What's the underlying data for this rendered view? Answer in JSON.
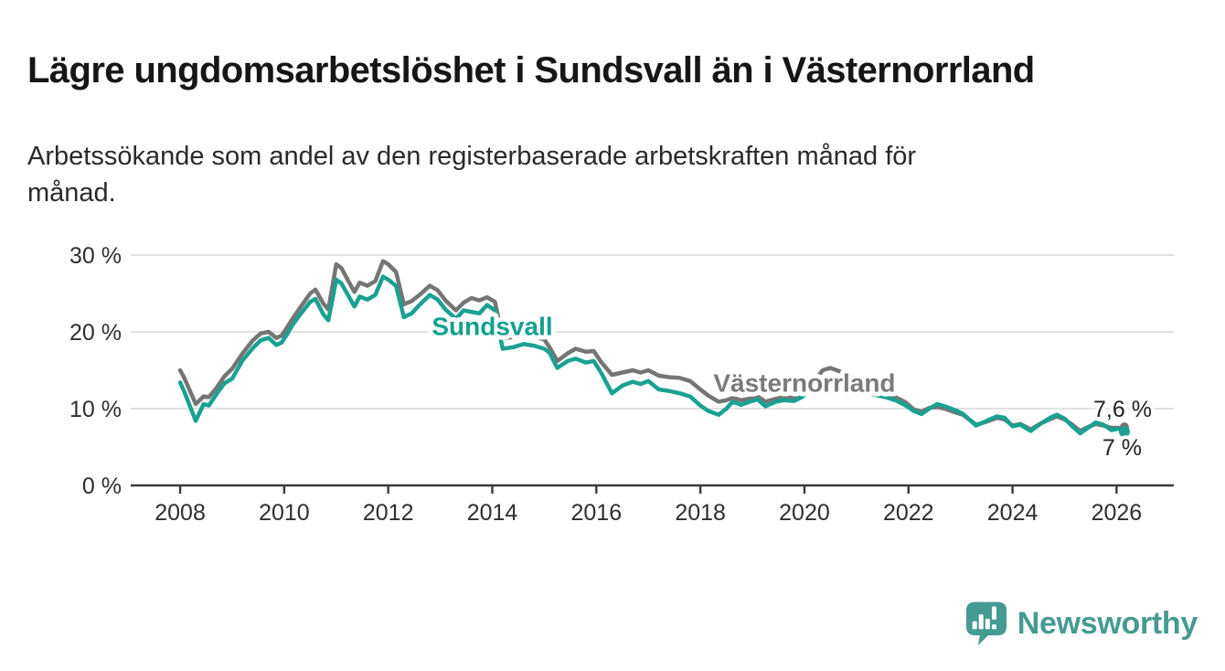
{
  "header": {
    "title": "Lägre ungdomsarbetslöshet i Sundsvall än i Västernorrland",
    "subtitle": "Arbetssökande som andel av den registerbaserade arbetskraften månad för månad."
  },
  "chart_data": {
    "type": "line",
    "title": "Lägre ungdomsarbetslöshet i Sundsvall än i Västernorrland",
    "subtitle": "Arbetssökande som andel av den registerbaserade arbetskraften månad för månad.",
    "grid": "horizontal",
    "legend_position": "inline-labels",
    "xlim": [
      2007.05,
      2027.1
    ],
    "ylim": [
      0,
      30
    ],
    "x_ticks": [
      2008,
      2010,
      2012,
      2014,
      2016,
      2018,
      2020,
      2022,
      2024,
      2026
    ],
    "x_tick_labels": [
      "2008",
      "2010",
      "2012",
      "2014",
      "2016",
      "2018",
      "2020",
      "2022",
      "2024",
      "2026"
    ],
    "y_ticks": [
      0,
      10,
      20,
      30
    ],
    "y_tick_labels": [
      "0 %",
      "10 %",
      "20 %",
      "30 %"
    ],
    "colors": {
      "grid": "#d9d9d9",
      "axis": "#3a3a3a",
      "tick_text": "#2f2f2f",
      "halo": "#ffffff"
    },
    "series": [
      {
        "name": "Västernorrland",
        "color": "#757575",
        "label_color": "#7b7b7b",
        "end_label": "7,6 %",
        "end_value": 7.6,
        "end_dot": true,
        "dot_r": 5,
        "label_pos": [
          2020.0,
          13.4
        ],
        "end_label_offset": [
          30,
          -11
        ],
        "points": [
          [
            2008.0,
            15.0
          ],
          [
            2008.08,
            14.0
          ],
          [
            2008.3,
            10.6
          ],
          [
            2008.45,
            11.6
          ],
          [
            2008.55,
            11.5
          ],
          [
            2008.7,
            12.7
          ],
          [
            2008.85,
            14.2
          ],
          [
            2009.0,
            15.2
          ],
          [
            2009.2,
            17.2
          ],
          [
            2009.4,
            18.9
          ],
          [
            2009.55,
            19.8
          ],
          [
            2009.7,
            20.0
          ],
          [
            2009.85,
            19.2
          ],
          [
            2009.95,
            19.5
          ],
          [
            2010.05,
            20.5
          ],
          [
            2010.15,
            21.6
          ],
          [
            2010.3,
            23.1
          ],
          [
            2010.5,
            25.0
          ],
          [
            2010.6,
            25.5
          ],
          [
            2010.75,
            23.7
          ],
          [
            2010.85,
            22.9
          ],
          [
            2011.0,
            28.8
          ],
          [
            2011.1,
            28.3
          ],
          [
            2011.25,
            26.4
          ],
          [
            2011.35,
            25.2
          ],
          [
            2011.45,
            26.4
          ],
          [
            2011.6,
            26.0
          ],
          [
            2011.75,
            26.6
          ],
          [
            2011.9,
            29.2
          ],
          [
            2012.0,
            28.8
          ],
          [
            2012.15,
            27.8
          ],
          [
            2012.3,
            23.6
          ],
          [
            2012.45,
            24.0
          ],
          [
            2012.6,
            24.8
          ],
          [
            2012.8,
            26.0
          ],
          [
            2012.95,
            25.4
          ],
          [
            2013.1,
            24.1
          ],
          [
            2013.3,
            22.8
          ],
          [
            2013.45,
            23.8
          ],
          [
            2013.6,
            24.4
          ],
          [
            2013.75,
            24.1
          ],
          [
            2013.9,
            24.5
          ],
          [
            2014.05,
            23.9
          ],
          [
            2014.2,
            19.2
          ],
          [
            2014.4,
            19.3
          ],
          [
            2014.6,
            19.6
          ],
          [
            2014.8,
            19.4
          ],
          [
            2015.0,
            19.0
          ],
          [
            2015.1,
            18.0
          ],
          [
            2015.25,
            16.2
          ],
          [
            2015.45,
            17.2
          ],
          [
            2015.6,
            17.8
          ],
          [
            2015.8,
            17.4
          ],
          [
            2015.95,
            17.5
          ],
          [
            2016.1,
            16.0
          ],
          [
            2016.3,
            14.4
          ],
          [
            2016.5,
            14.7
          ],
          [
            2016.7,
            15.0
          ],
          [
            2016.85,
            14.7
          ],
          [
            2017.0,
            15.0
          ],
          [
            2017.2,
            14.3
          ],
          [
            2017.4,
            14.1
          ],
          [
            2017.6,
            14.0
          ],
          [
            2017.8,
            13.6
          ],
          [
            2018.0,
            12.5
          ],
          [
            2018.15,
            11.7
          ],
          [
            2018.35,
            10.9
          ],
          [
            2018.5,
            11.1
          ],
          [
            2018.62,
            11.4
          ],
          [
            2018.78,
            11.1
          ],
          [
            2018.95,
            11.3
          ],
          [
            2019.1,
            11.6
          ],
          [
            2019.25,
            10.9
          ],
          [
            2019.45,
            11.3
          ],
          [
            2019.6,
            11.5
          ],
          [
            2019.8,
            11.4
          ],
          [
            2019.95,
            11.9
          ],
          [
            2020.15,
            13.2
          ],
          [
            2020.35,
            15.0
          ],
          [
            2020.5,
            15.3
          ],
          [
            2020.7,
            14.8
          ],
          [
            2020.9,
            14.2
          ],
          [
            2021.1,
            13.6
          ],
          [
            2021.3,
            13.0
          ],
          [
            2021.55,
            12.2
          ],
          [
            2021.75,
            11.5
          ],
          [
            2021.95,
            10.8
          ],
          [
            2022.1,
            9.9
          ],
          [
            2022.25,
            9.6
          ],
          [
            2022.4,
            10.1
          ],
          [
            2022.55,
            10.2
          ],
          [
            2022.7,
            10.0
          ],
          [
            2022.9,
            9.5
          ],
          [
            2023.05,
            9.2
          ],
          [
            2023.3,
            7.9
          ],
          [
            2023.5,
            8.3
          ],
          [
            2023.7,
            8.8
          ],
          [
            2023.85,
            8.6
          ],
          [
            2024.0,
            7.8
          ],
          [
            2024.15,
            8.0
          ],
          [
            2024.35,
            7.3
          ],
          [
            2024.55,
            8.1
          ],
          [
            2024.75,
            8.7
          ],
          [
            2024.85,
            9.0
          ],
          [
            2025.0,
            8.6
          ],
          [
            2025.15,
            7.9
          ],
          [
            2025.3,
            7.1
          ],
          [
            2025.45,
            7.6
          ],
          [
            2025.6,
            8.0
          ],
          [
            2025.75,
            7.8
          ],
          [
            2025.9,
            7.5
          ],
          [
            2026.05,
            7.5
          ],
          [
            2026.15,
            7.6
          ]
        ]
      },
      {
        "name": "Sundsvall",
        "color": "#1aa191",
        "label_color": "#14a08e",
        "end_label": "7 %",
        "end_value": 7.0,
        "end_dot": true,
        "dot_r": 6,
        "label_pos": [
          2014.0,
          20.8
        ],
        "end_label_offset": [
          19,
          26
        ],
        "points": [
          [
            2008.0,
            13.4
          ],
          [
            2008.08,
            12.2
          ],
          [
            2008.3,
            8.4
          ],
          [
            2008.45,
            10.6
          ],
          [
            2008.55,
            10.4
          ],
          [
            2008.7,
            11.9
          ],
          [
            2008.85,
            13.3
          ],
          [
            2009.0,
            13.9
          ],
          [
            2009.2,
            16.3
          ],
          [
            2009.4,
            17.9
          ],
          [
            2009.55,
            18.9
          ],
          [
            2009.7,
            19.2
          ],
          [
            2009.85,
            18.3
          ],
          [
            2009.95,
            18.6
          ],
          [
            2010.05,
            19.6
          ],
          [
            2010.15,
            20.8
          ],
          [
            2010.3,
            22.2
          ],
          [
            2010.5,
            23.9
          ],
          [
            2010.6,
            24.3
          ],
          [
            2010.75,
            22.3
          ],
          [
            2010.85,
            21.5
          ],
          [
            2011.0,
            26.8
          ],
          [
            2011.1,
            26.3
          ],
          [
            2011.25,
            24.5
          ],
          [
            2011.35,
            23.3
          ],
          [
            2011.45,
            24.6
          ],
          [
            2011.6,
            24.2
          ],
          [
            2011.75,
            24.8
          ],
          [
            2011.9,
            27.2
          ],
          [
            2012.0,
            26.8
          ],
          [
            2012.15,
            26.0
          ],
          [
            2012.3,
            21.9
          ],
          [
            2012.45,
            22.4
          ],
          [
            2012.6,
            23.5
          ],
          [
            2012.8,
            24.8
          ],
          [
            2012.95,
            24.2
          ],
          [
            2013.1,
            22.9
          ],
          [
            2013.3,
            21.7
          ],
          [
            2013.45,
            22.8
          ],
          [
            2013.6,
            22.6
          ],
          [
            2013.75,
            22.4
          ],
          [
            2013.9,
            23.5
          ],
          [
            2014.05,
            22.8
          ],
          [
            2014.2,
            17.8
          ],
          [
            2014.4,
            18.0
          ],
          [
            2014.6,
            18.4
          ],
          [
            2014.8,
            18.2
          ],
          [
            2015.0,
            17.8
          ],
          [
            2015.1,
            17.3
          ],
          [
            2015.25,
            15.3
          ],
          [
            2015.45,
            16.2
          ],
          [
            2015.6,
            16.5
          ],
          [
            2015.8,
            16.0
          ],
          [
            2015.95,
            16.2
          ],
          [
            2016.1,
            14.6
          ],
          [
            2016.3,
            12.0
          ],
          [
            2016.5,
            13.0
          ],
          [
            2016.7,
            13.5
          ],
          [
            2016.85,
            13.2
          ],
          [
            2017.0,
            13.6
          ],
          [
            2017.2,
            12.5
          ],
          [
            2017.4,
            12.3
          ],
          [
            2017.6,
            12.0
          ],
          [
            2017.8,
            11.6
          ],
          [
            2018.0,
            10.4
          ],
          [
            2018.15,
            9.7
          ],
          [
            2018.35,
            9.2
          ],
          [
            2018.5,
            10.0
          ],
          [
            2018.62,
            10.9
          ],
          [
            2018.78,
            10.5
          ],
          [
            2018.95,
            10.9
          ],
          [
            2019.1,
            11.2
          ],
          [
            2019.25,
            10.3
          ],
          [
            2019.45,
            10.9
          ],
          [
            2019.6,
            11.1
          ],
          [
            2019.8,
            11.0
          ],
          [
            2019.95,
            11.5
          ],
          [
            2020.15,
            12.5
          ],
          [
            2020.35,
            13.5
          ],
          [
            2020.5,
            13.8
          ],
          [
            2020.7,
            13.3
          ],
          [
            2020.9,
            12.8
          ],
          [
            2021.1,
            12.3
          ],
          [
            2021.3,
            11.9
          ],
          [
            2021.55,
            11.5
          ],
          [
            2021.75,
            11.1
          ],
          [
            2021.95,
            10.4
          ],
          [
            2022.1,
            9.7
          ],
          [
            2022.25,
            9.3
          ],
          [
            2022.4,
            10.0
          ],
          [
            2022.55,
            10.6
          ],
          [
            2022.7,
            10.3
          ],
          [
            2022.9,
            9.8
          ],
          [
            2023.05,
            9.3
          ],
          [
            2023.3,
            7.8
          ],
          [
            2023.5,
            8.4
          ],
          [
            2023.7,
            9.0
          ],
          [
            2023.85,
            8.8
          ],
          [
            2024.0,
            7.7
          ],
          [
            2024.15,
            7.9
          ],
          [
            2024.35,
            7.1
          ],
          [
            2024.55,
            8.1
          ],
          [
            2024.75,
            8.9
          ],
          [
            2024.85,
            9.2
          ],
          [
            2025.0,
            8.7
          ],
          [
            2025.15,
            7.7
          ],
          [
            2025.3,
            6.8
          ],
          [
            2025.45,
            7.5
          ],
          [
            2025.6,
            8.2
          ],
          [
            2025.75,
            7.9
          ],
          [
            2025.9,
            7.2
          ],
          [
            2026.05,
            7.4
          ],
          [
            2026.15,
            7.0
          ]
        ]
      }
    ]
  },
  "branding": {
    "name": "Newsworthy",
    "color": "#459b91"
  }
}
